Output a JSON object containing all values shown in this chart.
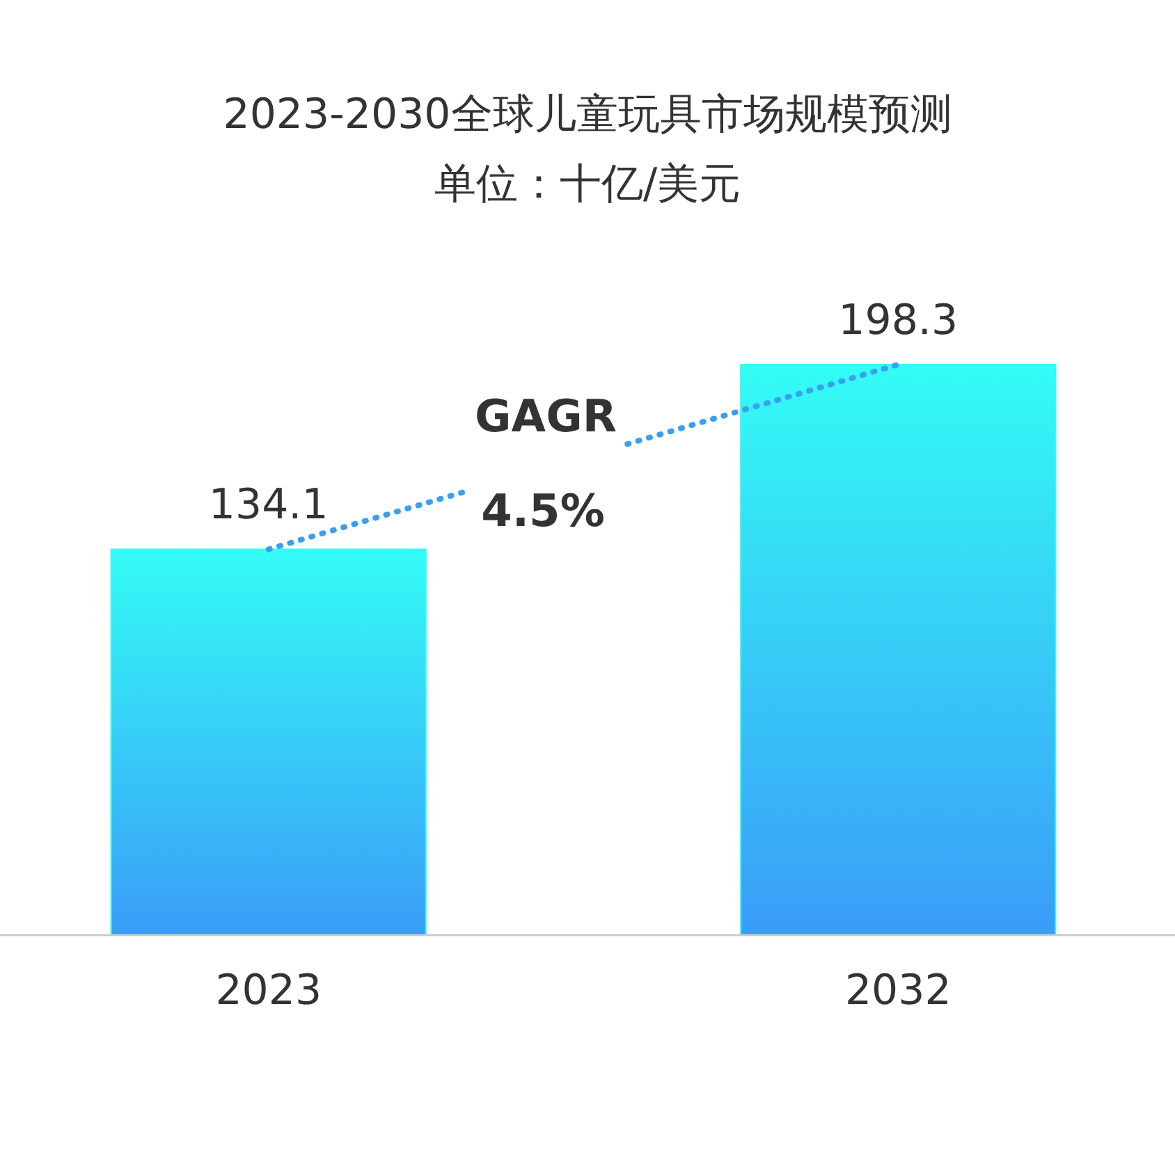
{
  "chart_data": {
    "type": "bar",
    "title": "2023-2030全球儿童玩具市场规模预测",
    "subtitle": "单位：十亿/美元",
    "categories": [
      "2023",
      "2032"
    ],
    "values": [
      134.1,
      198.3
    ],
    "color": "#33fcf5",
    "data_labels": true,
    "annotations": [
      "GAGR",
      "4.5%"
    ]
  }
}
